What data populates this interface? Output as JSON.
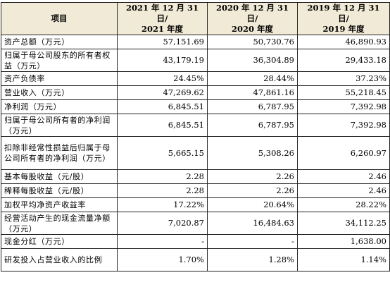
{
  "table": {
    "headers": [
      {
        "line1": "项目",
        "line2": ""
      },
      {
        "line1": "2021 年 12 月 31 日/",
        "line2": "2021 年度"
      },
      {
        "line1": "2020 年 12 月 31 日/",
        "line2": "2020 年度"
      },
      {
        "line1": "2019 年 12 月 31 日/",
        "line2": "2019 年度"
      }
    ],
    "rows": [
      {
        "label": "资产总额（万元）",
        "v2021": "57,151.69",
        "v2020": "50,730.76",
        "v2019": "46,890.93"
      },
      {
        "label": "归属于母公司股东的所有者权益（万元）",
        "v2021": "43,179.19",
        "v2020": "36,304.89",
        "v2019": "29,433.18"
      },
      {
        "label": "资产负债率",
        "v2021": "24.45%",
        "v2020": "28.44%",
        "v2019": "37.23%"
      },
      {
        "label": "营业收入（万元）",
        "v2021": "47,269.62",
        "v2020": "47,861.16",
        "v2019": "55,218.45"
      },
      {
        "label": "净利润（万元）",
        "v2021": "6,845.51",
        "v2020": "6,787.95",
        "v2019": "7,392.98"
      },
      {
        "label": "归属于母公司所有者的净利润（万元）",
        "v2021": "6,845.51",
        "v2020": "6,787.95",
        "v2019": "7,392.98"
      },
      {
        "label": "扣除非经常性损益后归属于母公司所有者的净利润（万元）",
        "v2021": "5,665.15",
        "v2020": "5,308.26",
        "v2019": "6,260.97"
      },
      {
        "label": "基本每股收益（元/股）",
        "v2021": "2.28",
        "v2020": "2.26",
        "v2019": "2.46"
      },
      {
        "label": "稀释每股收益（元/股）",
        "v2021": "2.28",
        "v2020": "2.26",
        "v2019": "2.46"
      },
      {
        "label": "加权平均净资产收益率",
        "v2021": "17.22%",
        "v2020": "20.64%",
        "v2019": "28.22%"
      },
      {
        "label": "经营活动产生的现金流量净额（万元）",
        "v2021": "7,020.87",
        "v2020": "16,484.63",
        "v2019": "34,112.25"
      },
      {
        "label": "现金分红（万元）",
        "v2021": "-",
        "v2020": "-",
        "v2019": "1,638.00"
      },
      {
        "label": "研发投入占营业收入的比例",
        "v2021": "1.70%",
        "v2020": "1.28%",
        "v2019": "1.14%"
      }
    ]
  }
}
